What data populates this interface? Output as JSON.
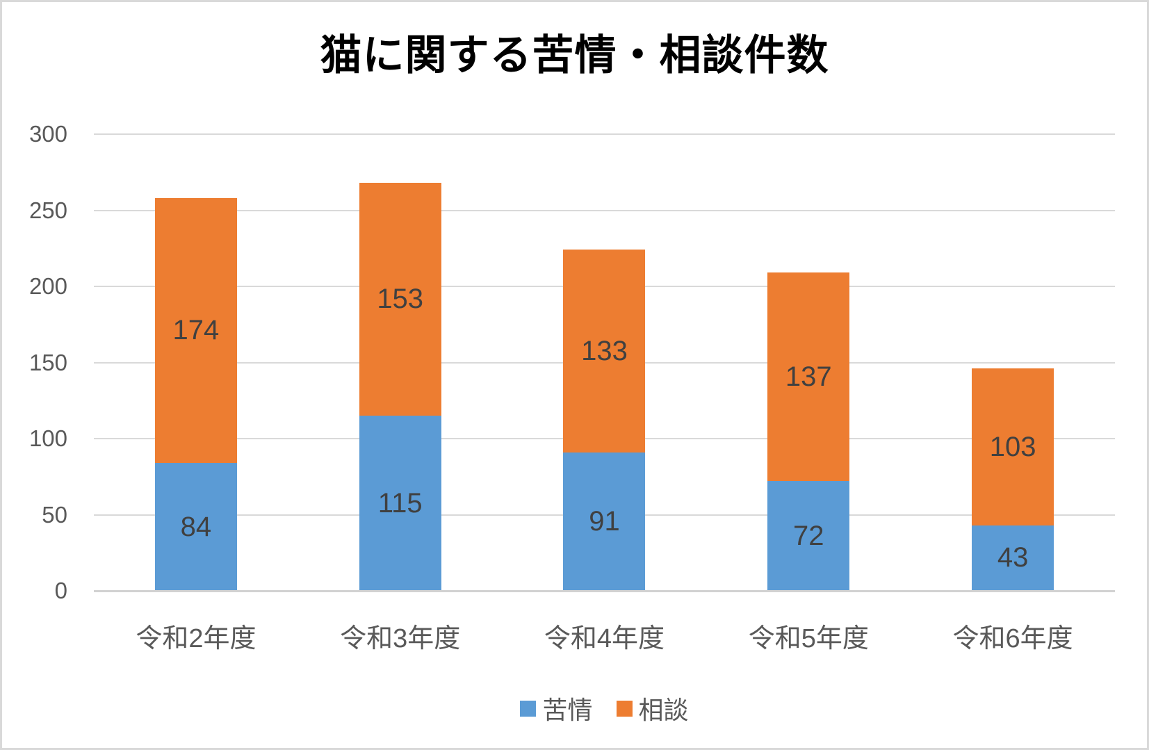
{
  "chart_data": {
    "type": "bar",
    "stacked": true,
    "title": "猫に関する苦情・相談件数",
    "categories": [
      "令和2年度",
      "令和3年度",
      "令和4年度",
      "令和5年度",
      "令和6年度"
    ],
    "series": [
      {
        "name": "苦情",
        "color": "#5B9BD5",
        "values": [
          84,
          115,
          91,
          72,
          43
        ]
      },
      {
        "name": "相談",
        "color": "#ED7D31",
        "values": [
          174,
          153,
          133,
          137,
          103
        ]
      }
    ],
    "stack_totals": [
      258,
      268,
      224,
      209,
      146
    ],
    "xlabel": "",
    "ylabel": "",
    "ylim": [
      0,
      300
    ],
    "yticks": [
      0,
      50,
      100,
      150,
      200,
      250,
      300
    ],
    "grid": true,
    "data_labels": true,
    "legend_position": "bottom"
  },
  "colors": {
    "gridline": "#D9D9D9",
    "axis_line": "#D2D2D2",
    "axis_label": "#595959",
    "data_label": "#404040",
    "title": "#000000",
    "background": "#FFFFFF",
    "frame_border": "#D9D9D9"
  }
}
